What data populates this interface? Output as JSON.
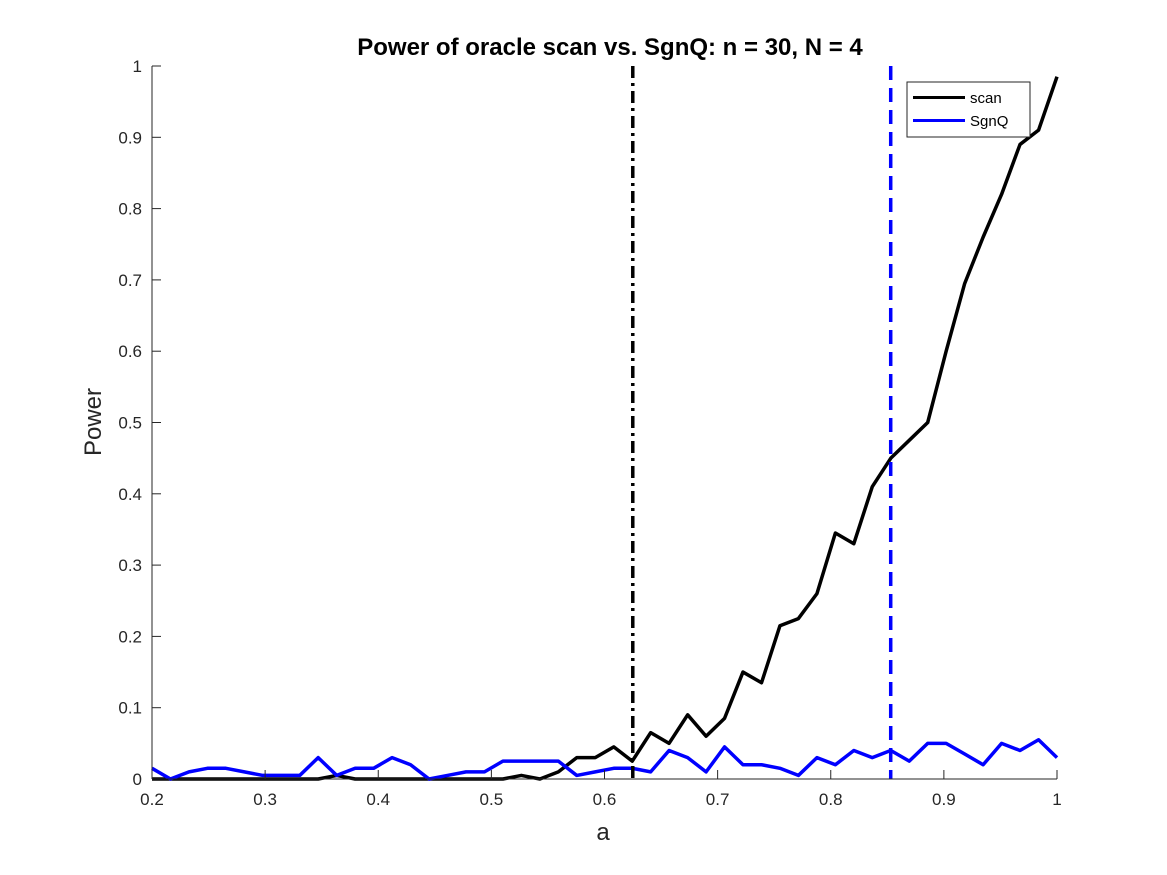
{
  "chart_data": {
    "type": "line",
    "title": "Power of oracle scan vs. SgnQ:  n = 30, N = 4",
    "xlabel": "a",
    "ylabel": "Power",
    "xlim": [
      0.2,
      1
    ],
    "ylim": [
      0,
      1
    ],
    "xticks": [
      "0.2",
      "0.3",
      "0.4",
      "0.5",
      "0.6",
      "0.7",
      "0.8",
      "0.9",
      "1"
    ],
    "yticks": [
      "0",
      "0.1",
      "0.2",
      "0.3",
      "0.4",
      "0.5",
      "0.6",
      "0.7",
      "0.8",
      "0.9",
      "1"
    ],
    "grid": false,
    "legend_position": "top-right",
    "x": [
      0.2,
      0.2163,
      0.2327,
      0.249,
      0.2653,
      0.2816,
      0.298,
      0.3143,
      0.3306,
      0.3469,
      0.3633,
      0.3796,
      0.3959,
      0.4122,
      0.4286,
      0.4449,
      0.4612,
      0.4776,
      0.4939,
      0.5102,
      0.5265,
      0.5429,
      0.5592,
      0.5755,
      0.5918,
      0.6082,
      0.6245,
      0.6408,
      0.6571,
      0.6735,
      0.6898,
      0.7061,
      0.7224,
      0.7388,
      0.7551,
      0.7714,
      0.7878,
      0.8041,
      0.8204,
      0.8367,
      0.8531,
      0.8694,
      0.8857,
      0.902,
      0.9184,
      0.9347,
      0.951,
      0.9673,
      0.9837,
      1.0
    ],
    "series": [
      {
        "name": "scan",
        "color": "#000000",
        "values": [
          0.0,
          0.0,
          0.0,
          0.0,
          0.0,
          0.0,
          0.0,
          0.0,
          0.0,
          0.0,
          0.005,
          0.0,
          0.0,
          0.0,
          0.0,
          0.0,
          0.0,
          0.0,
          0.0,
          0.0,
          0.005,
          0.0,
          0.01,
          0.03,
          0.03,
          0.045,
          0.025,
          0.065,
          0.05,
          0.09,
          0.06,
          0.085,
          0.15,
          0.135,
          0.215,
          0.225,
          0.26,
          0.345,
          0.33,
          0.41,
          0.45,
          0.475,
          0.5,
          0.6,
          0.695,
          0.76,
          0.82,
          0.89,
          0.91,
          0.985
        ]
      },
      {
        "name": "SgnQ",
        "color": "#0000ff",
        "values": [
          0.015,
          0.0,
          0.01,
          0.015,
          0.015,
          0.01,
          0.005,
          0.005,
          0.005,
          0.03,
          0.005,
          0.015,
          0.015,
          0.03,
          0.02,
          0.0,
          0.005,
          0.01,
          0.01,
          0.025,
          0.025,
          0.025,
          0.025,
          0.005,
          0.01,
          0.015,
          0.015,
          0.01,
          0.04,
          0.03,
          0.01,
          0.045,
          0.02,
          0.02,
          0.015,
          0.005,
          0.03,
          0.02,
          0.04,
          0.03,
          0.04,
          0.025,
          0.05,
          0.05,
          0.035,
          0.02,
          0.05,
          0.04,
          0.055,
          0.03
        ]
      }
    ],
    "vlines": [
      {
        "x": 0.625,
        "color": "#000000",
        "style": "dash-dot"
      },
      {
        "x": 0.853,
        "color": "#0000ff",
        "style": "dashed"
      }
    ]
  }
}
